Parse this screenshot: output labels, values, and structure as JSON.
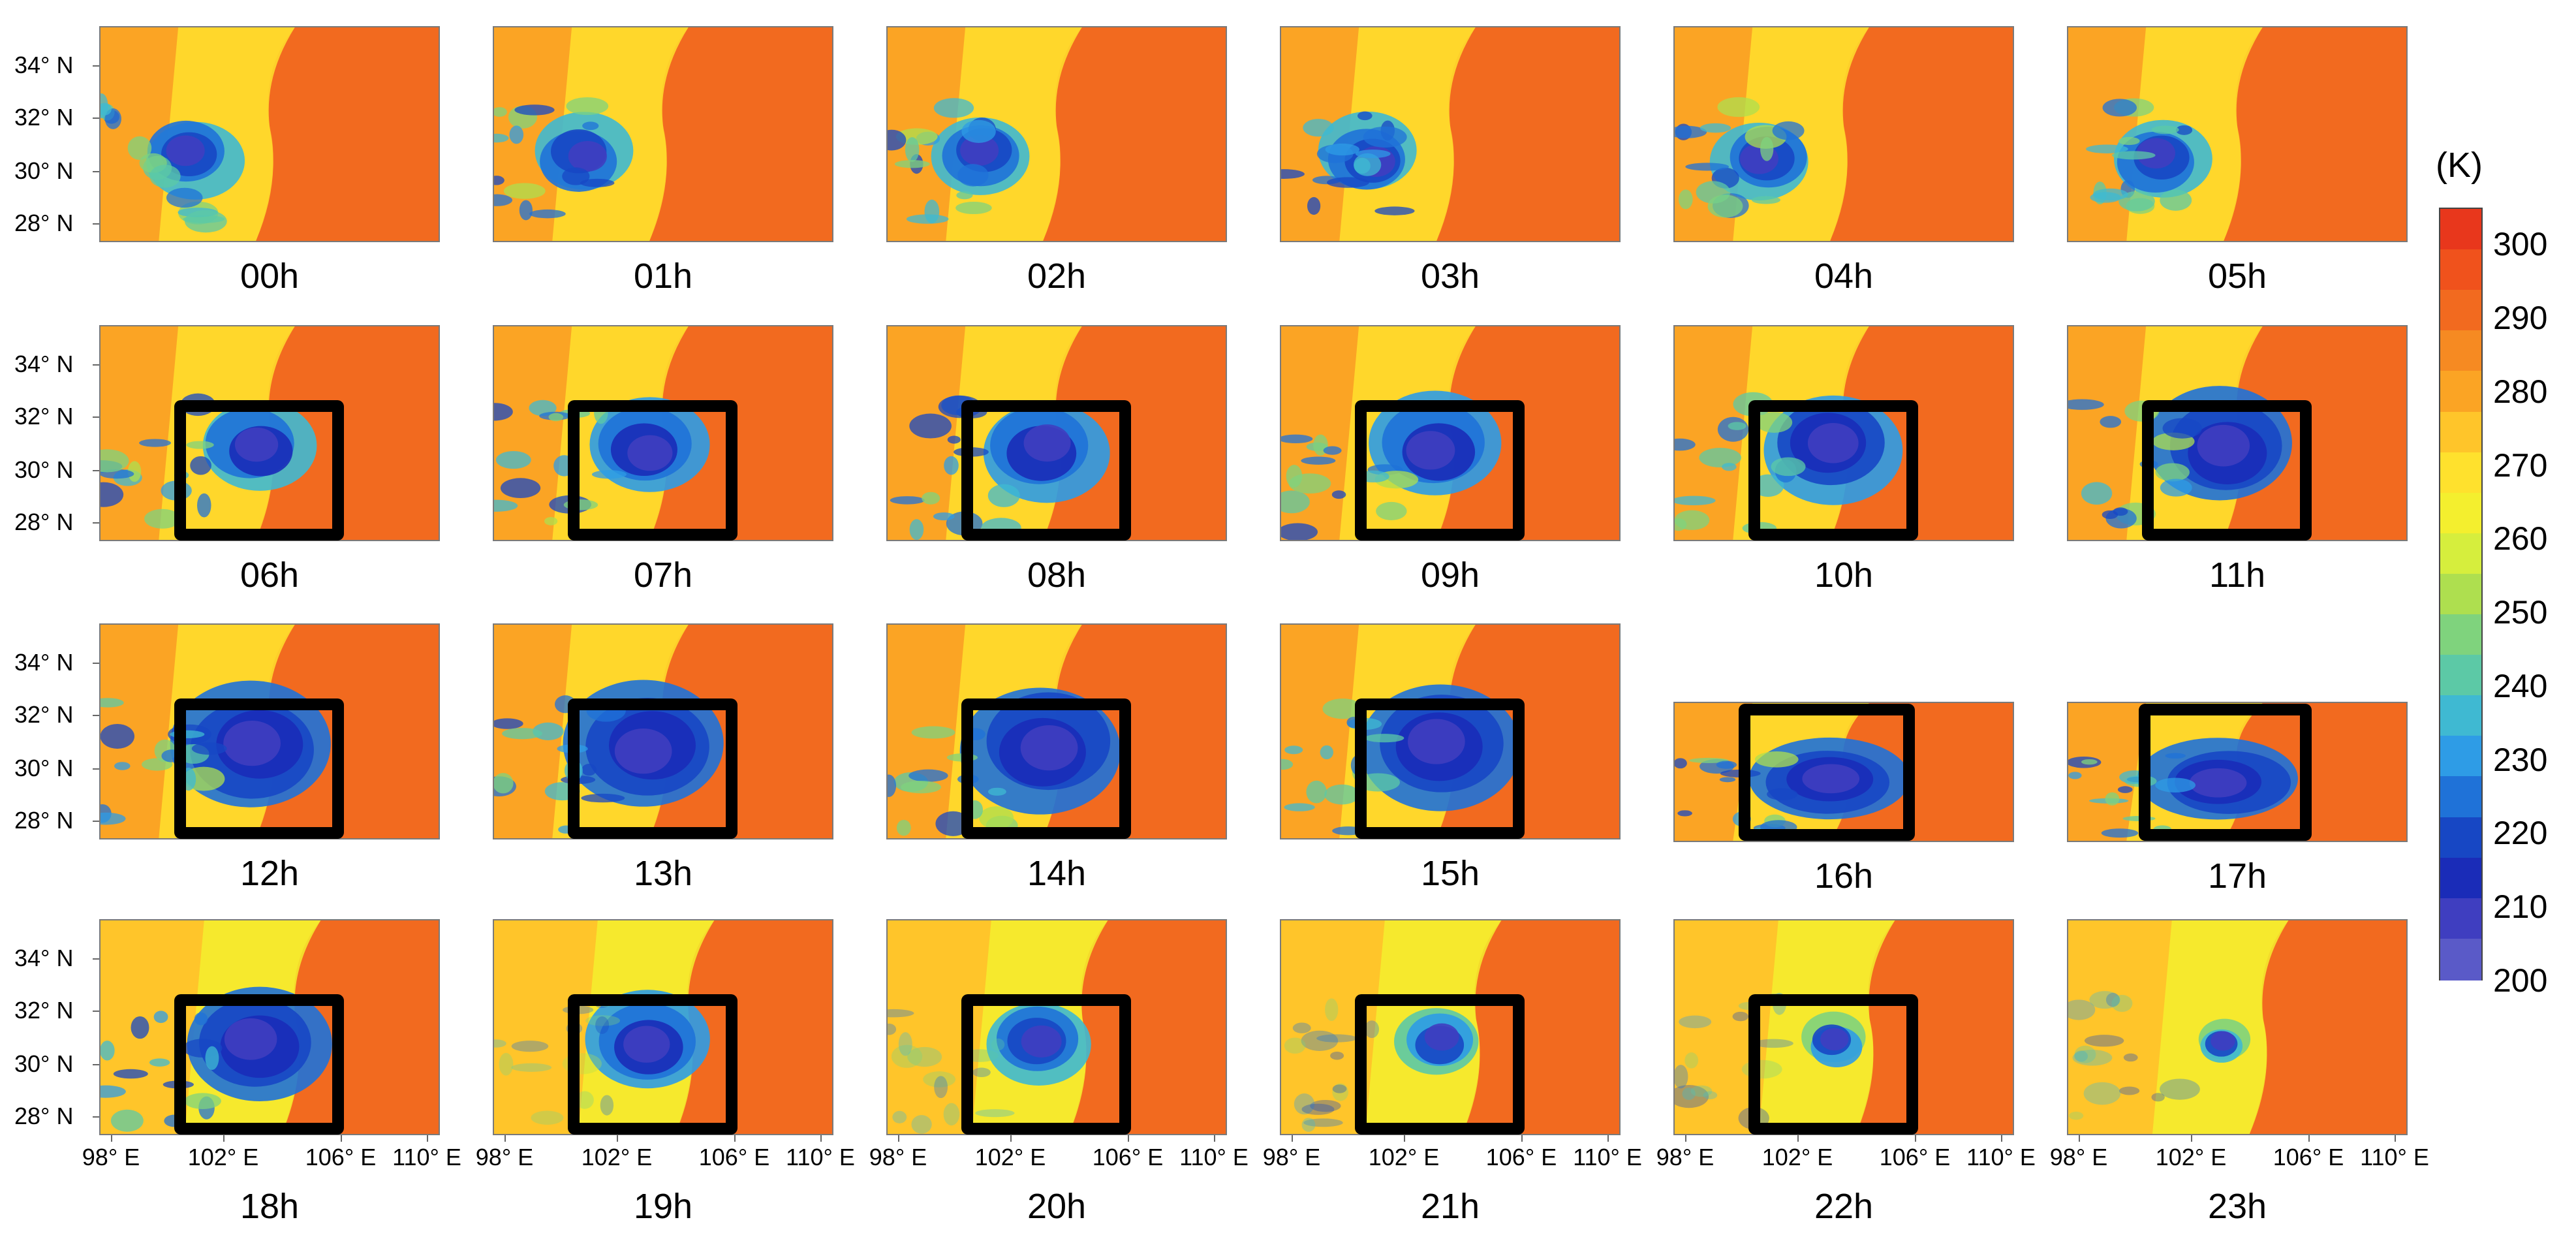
{
  "figure": {
    "hours": [
      "00h",
      "01h",
      "02h",
      "03h",
      "04h",
      "05h",
      "06h",
      "07h",
      "08h",
      "09h",
      "10h",
      "11h",
      "12h",
      "13h",
      "14h",
      "15h",
      "16h",
      "17h",
      "18h",
      "19h",
      "20h",
      "21h",
      "22h",
      "23h"
    ],
    "lat_labels": [
      "34° N",
      "32° N",
      "30° N",
      "28° N"
    ],
    "lon_labels": [
      "98° E",
      "102° E",
      "106° E",
      "110° E"
    ],
    "highlight_box_hours": [
      "06h",
      "07h",
      "08h",
      "09h",
      "10h",
      "11h",
      "12h",
      "13h",
      "14h",
      "15h",
      "16h",
      "17h",
      "18h",
      "19h",
      "20h",
      "21h",
      "22h"
    ]
  },
  "colorbar": {
    "unit": "(K)",
    "ticks": [
      "300",
      "290",
      "280",
      "270",
      "260",
      "250",
      "240",
      "230",
      "220",
      "210",
      "200"
    ],
    "min": 200,
    "max": 305,
    "colors": [
      "#e8371c",
      "#f0521c",
      "#f26a1f",
      "#f68a22",
      "#fba424",
      "#ffc52a",
      "#ffe12d",
      "#f4ef2e",
      "#d6ee3d",
      "#aedf4f",
      "#7fd37d",
      "#5cc9a6",
      "#3fb9d2",
      "#2e9ce6",
      "#1f72d8",
      "#1747c4",
      "#1a2cb8",
      "#3f3ec0",
      "#5a5ac8"
    ]
  }
}
